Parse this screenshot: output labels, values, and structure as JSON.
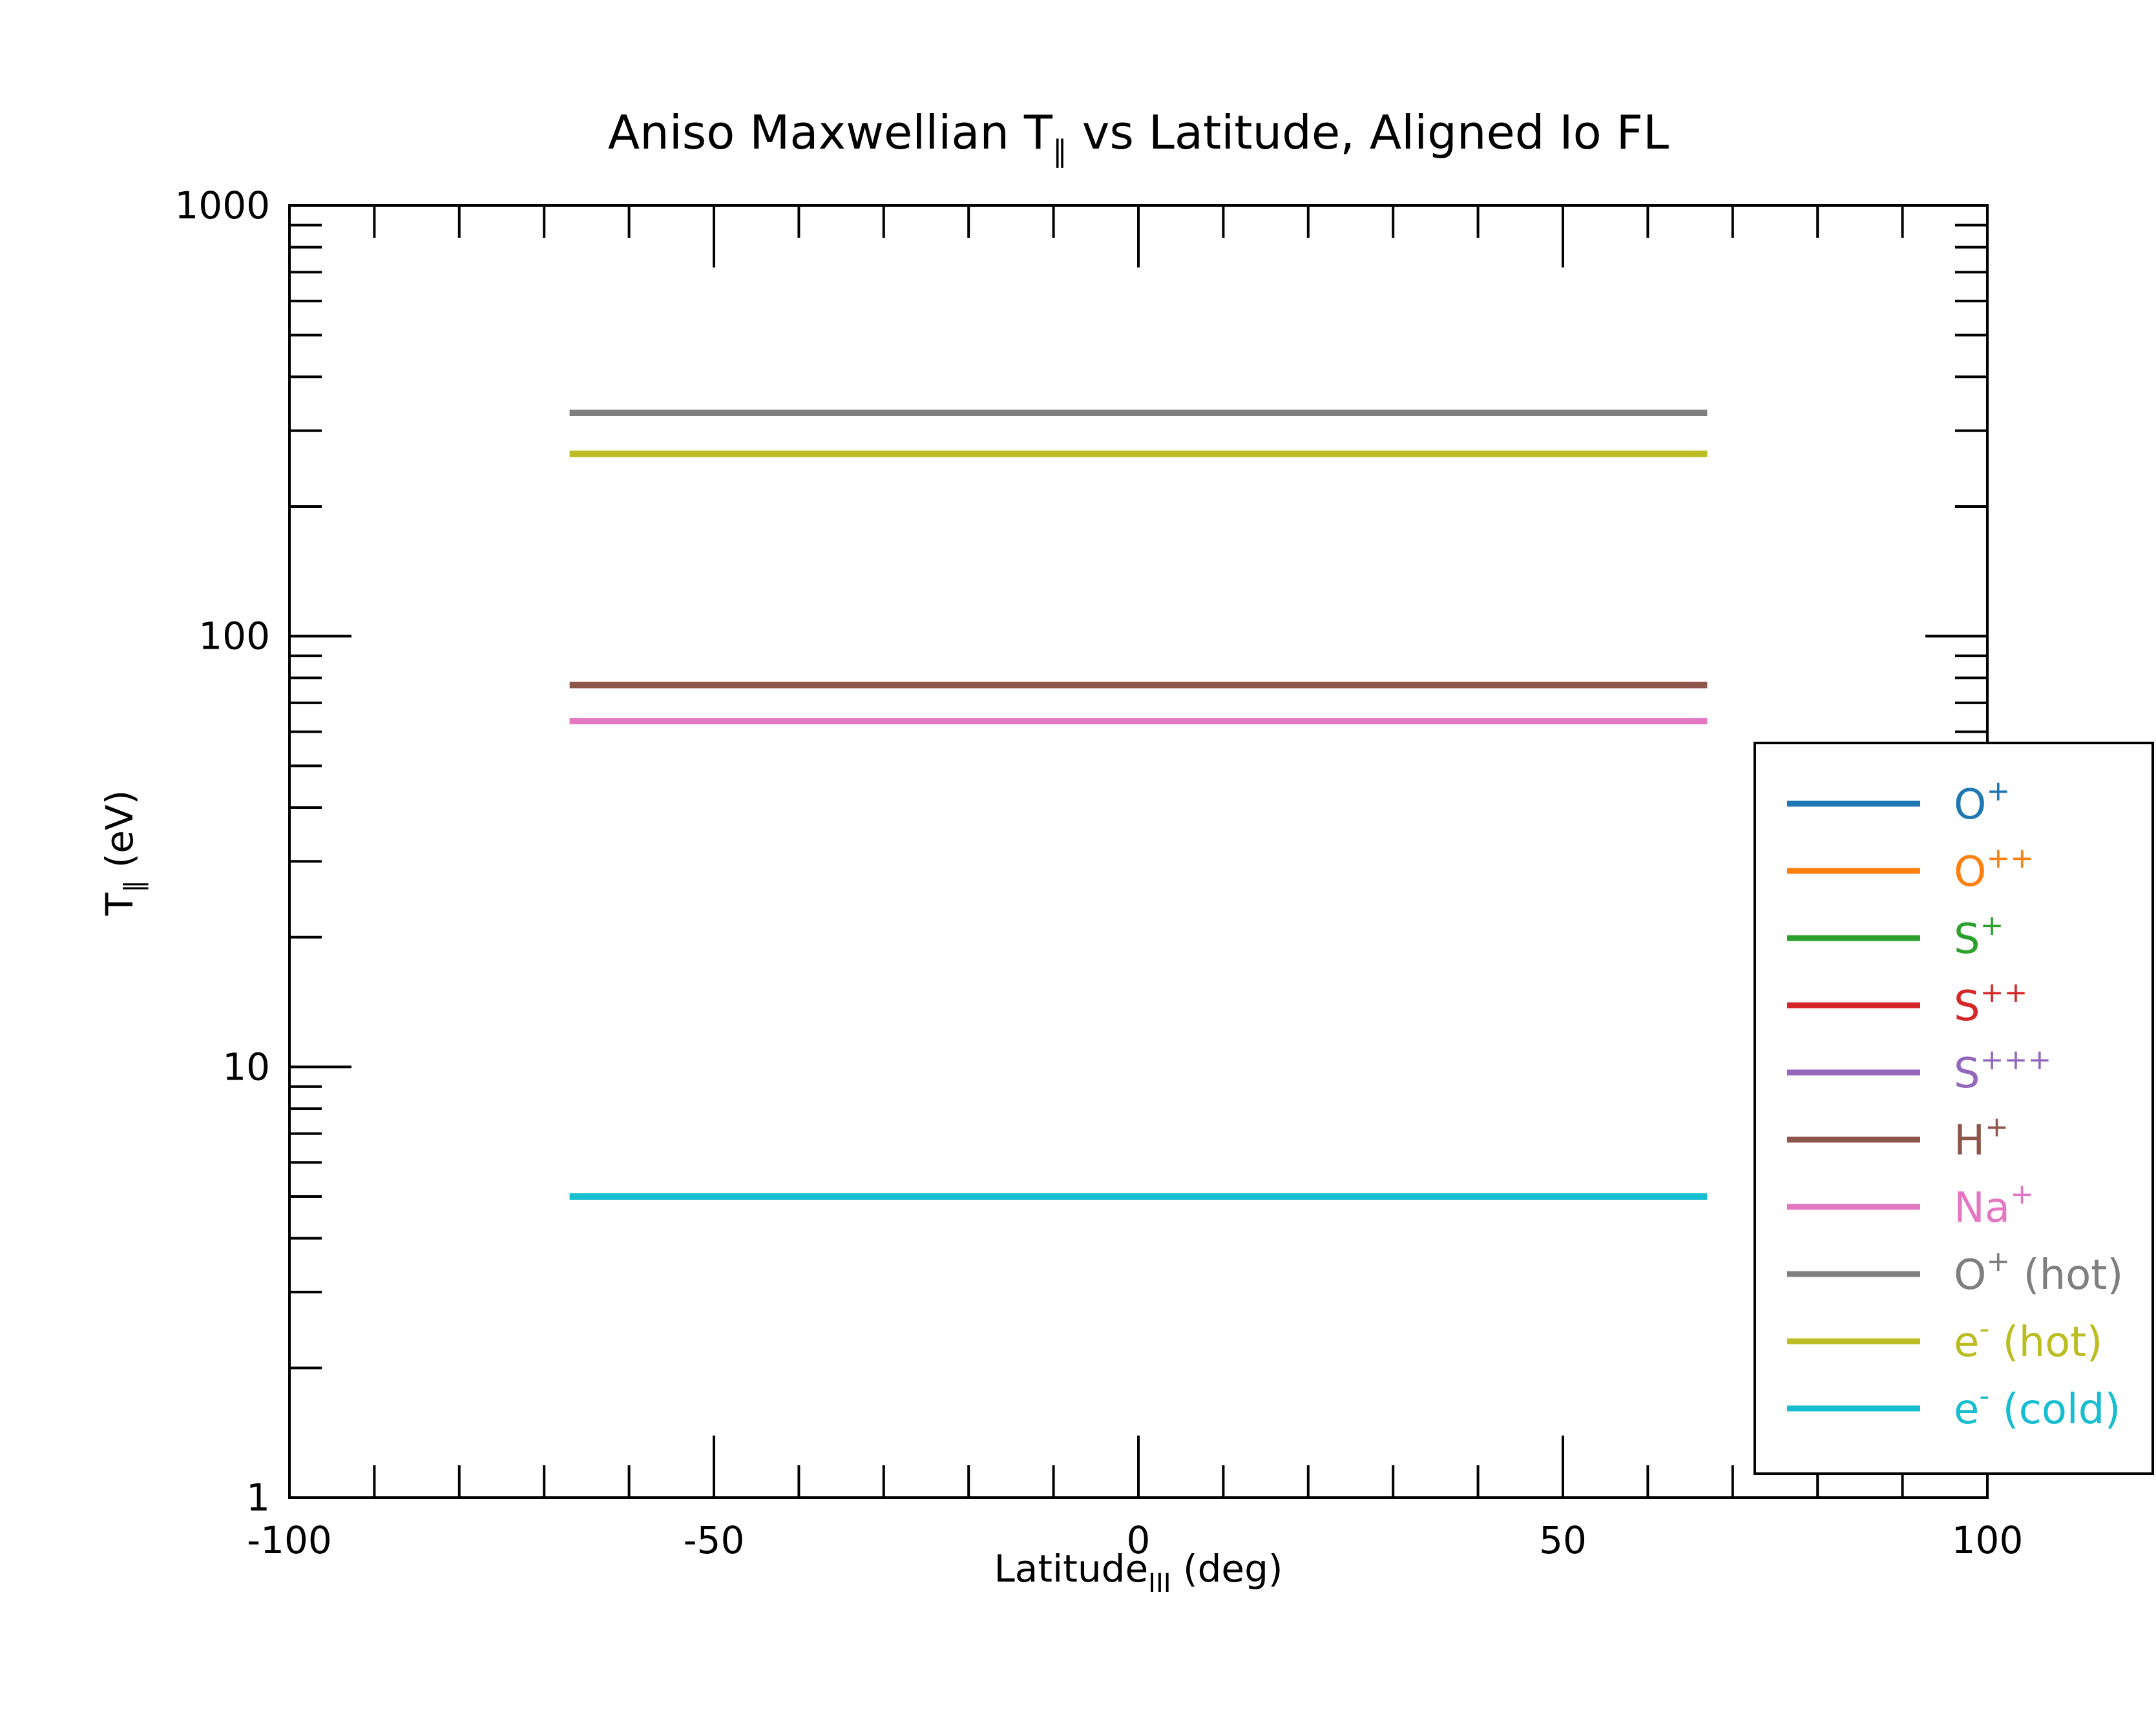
{
  "chart_data": {
    "type": "line",
    "title": {
      "main": "Aniso Maxwellian T",
      "sub": "∥",
      "rest": " vs Latitude, Aligned Io FL"
    },
    "xlabel": {
      "main": "Latitude",
      "sub": "III",
      "rest": " (deg)"
    },
    "ylabel": {
      "main": "T",
      "sub": "∥",
      "rest": " (eV)"
    },
    "x_scale": "linear",
    "y_scale": "log",
    "xlim": [
      -100,
      100
    ],
    "ylim": [
      1,
      1000
    ],
    "x_ticks": [
      -100,
      -50,
      0,
      50,
      100
    ],
    "x_tick_labels": [
      "-100",
      "-50",
      "0",
      "50",
      "100"
    ],
    "y_ticks": [
      1,
      10,
      100,
      1000
    ],
    "y_tick_labels": [
      "1",
      "10",
      "100",
      "1000"
    ],
    "grid": false,
    "legend_position": "right",
    "x": [
      -67,
      67
    ],
    "series": [
      {
        "name": "O",
        "sup": "+",
        "suffix": "",
        "color": "#1f77b4",
        "values": null
      },
      {
        "name": "O",
        "sup": "++",
        "suffix": "",
        "color": "#ff7f0e",
        "values": null
      },
      {
        "name": "S",
        "sup": "+",
        "suffix": "",
        "color": "#2ca02c",
        "values": null
      },
      {
        "name": "S",
        "sup": "++",
        "suffix": "",
        "color": "#d62728",
        "values": null
      },
      {
        "name": "S",
        "sup": "+++",
        "suffix": "",
        "color": "#9467bd",
        "values": null
      },
      {
        "name": "H",
        "sup": "+",
        "suffix": "",
        "color": "#8c564b",
        "values": [
          77,
          77
        ]
      },
      {
        "name": "Na",
        "sup": "+",
        "suffix": "",
        "color": "#e377c2",
        "values": [
          63.5,
          63.5
        ]
      },
      {
        "name": "O",
        "sup": "+",
        "suffix": " (hot)",
        "color": "#7f7f7f",
        "values": [
          330,
          330
        ]
      },
      {
        "name": "e",
        "sup": "-",
        "suffix": " (hot)",
        "color": "#bcbd22",
        "values": [
          265,
          265
        ]
      },
      {
        "name": "e",
        "sup": "-",
        "suffix": " (cold)",
        "color": "#17becf",
        "values": [
          5,
          5
        ]
      }
    ]
  }
}
